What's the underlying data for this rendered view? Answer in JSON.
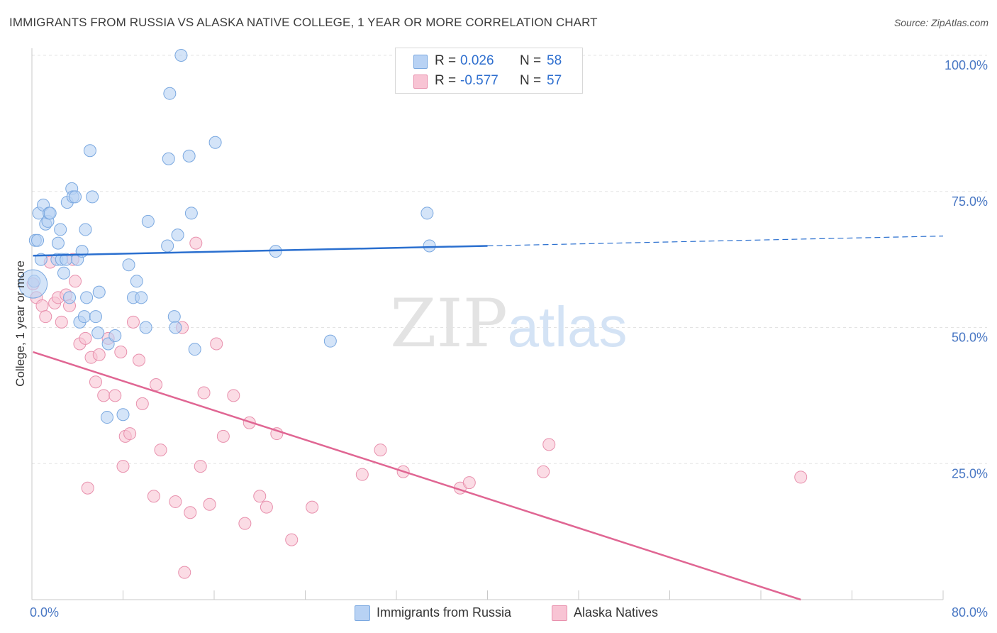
{
  "title": "IMMIGRANTS FROM RUSSIA VS ALASKA NATIVE COLLEGE, 1 YEAR OR MORE CORRELATION CHART",
  "source": "Source: ZipAtlas.com",
  "watermark": {
    "zip": "ZIP",
    "atlas": "atlas"
  },
  "legend_top": {
    "rows": [
      {
        "r_label": "R =",
        "r_value": "0.026",
        "n_label": "N =",
        "n_value": "58"
      },
      {
        "r_label": "R =",
        "r_value": "-0.577",
        "n_label": "N =",
        "n_value": "57"
      }
    ]
  },
  "legend_bottom": {
    "items": [
      {
        "label": "Immigrants from Russia"
      },
      {
        "label": "Alaska Natives"
      }
    ]
  },
  "colors": {
    "blue_fill": "#b8d2f4",
    "blue_stroke": "#7aa8e0",
    "blue_line": "#2a6fcf",
    "pink_fill": "#f8c4d4",
    "pink_stroke": "#e890ad",
    "pink_line": "#e06693",
    "grid": "#e3e3e3",
    "tick_label": "#4a78c4"
  },
  "chart_data": {
    "type": "scatter",
    "title": "IMMIGRANTS FROM RUSSIA VS ALASKA NATIVE COLLEGE, 1 YEAR OR MORE CORRELATION CHART",
    "xlabel": "",
    "ylabel": "College, 1 year or more",
    "xlim": [
      0,
      80
    ],
    "ylim": [
      0,
      105
    ],
    "x_tick_labels": [
      "0.0%",
      "80.0%"
    ],
    "y_ticks": [
      25,
      50,
      75,
      100
    ],
    "y_tick_labels": [
      "25.0%",
      "50.0%",
      "75.0%",
      "100.0%"
    ],
    "grid": "horizontal dashed",
    "legend_position": "top-center",
    "series": [
      {
        "name": "Immigrants from Russia",
        "color": "blue",
        "trend": {
          "x0": 0.1,
          "y0": 63.2,
          "x1": 40,
          "y1": 65.0,
          "dashed_to_x": 80,
          "dashed_to_y": 66.8
        },
        "points": [
          [
            0.2,
            58.5
          ],
          [
            0.3,
            66.0
          ],
          [
            0.5,
            66.0
          ],
          [
            0.6,
            71.0
          ],
          [
            0.8,
            62.5
          ],
          [
            1.0,
            72.5
          ],
          [
            1.2,
            69.0
          ],
          [
            1.4,
            69.5
          ],
          [
            1.5,
            71.0
          ],
          [
            1.6,
            71.0
          ],
          [
            2.2,
            62.5
          ],
          [
            2.3,
            65.5
          ],
          [
            2.5,
            68.0
          ],
          [
            2.6,
            62.5
          ],
          [
            2.8,
            60.0
          ],
          [
            3.0,
            62.5
          ],
          [
            3.1,
            73.0
          ],
          [
            3.3,
            55.5
          ],
          [
            3.5,
            75.5
          ],
          [
            3.6,
            74.0
          ],
          [
            3.8,
            74.0
          ],
          [
            4.0,
            62.5
          ],
          [
            4.2,
            51.0
          ],
          [
            4.4,
            64.0
          ],
          [
            4.6,
            52.0
          ],
          [
            4.7,
            68.0
          ],
          [
            4.8,
            55.5
          ],
          [
            5.1,
            82.5
          ],
          [
            5.3,
            74.0
          ],
          [
            5.6,
            52.0
          ],
          [
            5.8,
            49.0
          ],
          [
            5.9,
            56.5
          ],
          [
            6.6,
            33.5
          ],
          [
            6.7,
            47.0
          ],
          [
            7.3,
            48.5
          ],
          [
            8.0,
            34.0
          ],
          [
            8.5,
            61.5
          ],
          [
            8.9,
            55.5
          ],
          [
            9.2,
            58.5
          ],
          [
            9.6,
            55.5
          ],
          [
            10.0,
            50.0
          ],
          [
            10.2,
            69.5
          ],
          [
            11.9,
            65.0
          ],
          [
            12.0,
            81.0
          ],
          [
            12.1,
            93.0
          ],
          [
            12.5,
            52.0
          ],
          [
            12.6,
            50.0
          ],
          [
            12.8,
            67.0
          ],
          [
            13.1,
            100.0
          ],
          [
            13.8,
            81.5
          ],
          [
            14.0,
            71.0
          ],
          [
            14.3,
            46.0
          ],
          [
            16.1,
            84.0
          ],
          [
            21.4,
            64.0
          ],
          [
            26.2,
            47.5
          ],
          [
            34.7,
            71.0
          ],
          [
            34.9,
            65.0
          ],
          [
            0.1,
            58.0
          ]
        ]
      },
      {
        "name": "Alaska Natives",
        "color": "pink",
        "trend": {
          "x0": 0.1,
          "y0": 45.5,
          "x1": 67.5,
          "y1": 0.0
        },
        "points": [
          [
            0.1,
            58.0
          ],
          [
            0.4,
            55.5
          ],
          [
            0.9,
            54.0
          ],
          [
            1.2,
            52.0
          ],
          [
            1.6,
            62.0
          ],
          [
            2.0,
            54.5
          ],
          [
            2.3,
            55.5
          ],
          [
            2.6,
            51.0
          ],
          [
            3.0,
            56.0
          ],
          [
            3.3,
            54.0
          ],
          [
            3.6,
            62.5
          ],
          [
            3.8,
            58.5
          ],
          [
            4.2,
            47.0
          ],
          [
            4.7,
            48.0
          ],
          [
            4.9,
            20.5
          ],
          [
            5.2,
            44.5
          ],
          [
            5.6,
            40.0
          ],
          [
            5.9,
            45.0
          ],
          [
            6.3,
            37.5
          ],
          [
            6.7,
            48.0
          ],
          [
            7.3,
            37.5
          ],
          [
            7.8,
            45.5
          ],
          [
            8.0,
            24.5
          ],
          [
            8.2,
            30.0
          ],
          [
            8.6,
            30.5
          ],
          [
            8.9,
            51.0
          ],
          [
            9.4,
            44.0
          ],
          [
            9.7,
            36.0
          ],
          [
            10.7,
            19.0
          ],
          [
            10.9,
            39.5
          ],
          [
            11.3,
            27.5
          ],
          [
            12.6,
            18.0
          ],
          [
            13.2,
            50.0
          ],
          [
            13.4,
            5.0
          ],
          [
            13.9,
            16.0
          ],
          [
            14.4,
            65.5
          ],
          [
            14.8,
            24.5
          ],
          [
            15.1,
            38.0
          ],
          [
            15.6,
            17.5
          ],
          [
            16.2,
            47.0
          ],
          [
            16.8,
            30.0
          ],
          [
            17.7,
            37.5
          ],
          [
            18.7,
            14.0
          ],
          [
            19.1,
            32.5
          ],
          [
            20.0,
            19.0
          ],
          [
            20.6,
            17.0
          ],
          [
            21.5,
            30.5
          ],
          [
            22.8,
            11.0
          ],
          [
            24.6,
            17.0
          ],
          [
            29.0,
            23.0
          ],
          [
            30.6,
            27.5
          ],
          [
            32.6,
            23.5
          ],
          [
            37.6,
            20.5
          ],
          [
            38.4,
            21.5
          ],
          [
            44.9,
            23.5
          ],
          [
            45.4,
            28.5
          ],
          [
            67.5,
            22.5
          ]
        ]
      }
    ]
  }
}
